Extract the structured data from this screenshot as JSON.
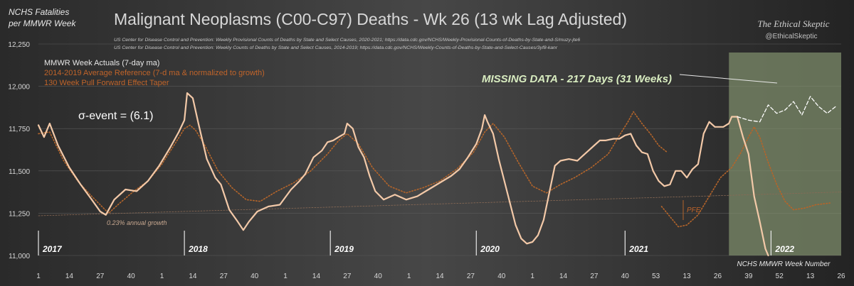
{
  "header": {
    "ylabel_line1": "NCHS Fatalities",
    "ylabel_line2": "per MMWR Week",
    "title": "Malignant Neoplasms (C00-C97) Deaths - Wk 26 (13 wk Lag Adjusted)",
    "source1": "US Center for Disease Control and Prevention: Weekly  Provisional Counts of Deaths by State and Select Causes, 2020-2021; https://data.cdc.gov/NCHS/Weekly-Provisional-Counts-of-Deaths-by-State-and-S/muzy-jte6",
    "source2": "US Center for Disease Control and Prevention: Weekly  Counts of Deaths by State and Select Causes, 2014-2019; https://data.cdc.gov/NCHS/Weekly-Counts-of-Deaths-by-State-and-Select-Causes/3yf8-kanr",
    "brand": "The Ethical Skeptic",
    "handle": "@EthicalSkeptic"
  },
  "colors": {
    "background": "#2b2b2b",
    "actuals": "#f3c9a8",
    "reference": "#b5652a",
    "pfe": "#8a6a55",
    "missing_band": "#7f8f6c",
    "missing_text": "#d8ecc0",
    "projection": "#ffffff"
  },
  "annotations": {
    "sigma": "σ-event  =  (6.1)",
    "missing": "MISSING DATA - 217 Days (31 Weeks)",
    "growth": "0.23% annual growth",
    "pfe": "PFE",
    "xaxis_title": "NCHS MMWR Week Number"
  },
  "chart_data": {
    "type": "line",
    "ylim": [
      11000,
      12250
    ],
    "yticks": [
      "11,000",
      "11,250",
      "11,500",
      "11,750",
      "12,000",
      "12,250"
    ],
    "x_tick_labels": [
      "1",
      "14",
      "27",
      "40",
      "1",
      "14",
      "27",
      "40",
      "1",
      "14",
      "27",
      "40",
      "1",
      "14",
      "27",
      "40",
      "1",
      "14",
      "27",
      "40",
      "53",
      "13",
      "26",
      "39",
      "52",
      "13",
      "26"
    ],
    "year_labels": [
      "2017",
      "2018",
      "2019",
      "2020",
      "2021",
      "2022"
    ],
    "legend": [
      "MMWR Week Actuals (7-day ma)",
      "2014-2019 Average Reference  (7-d ma & normalized to growth)",
      "130 Week Pull Forward Effect Taper"
    ],
    "x_range": [
      1,
      287
    ],
    "year_starts": [
      1,
      53,
      105,
      157,
      210,
      262
    ],
    "missing_band": [
      247,
      287
    ],
    "series": [
      {
        "name": "MMWR Week Actuals (7-day ma)",
        "points": [
          [
            1,
            11770
          ],
          [
            3,
            11700
          ],
          [
            5,
            11780
          ],
          [
            8,
            11650
          ],
          [
            12,
            11520
          ],
          [
            16,
            11420
          ],
          [
            20,
            11330
          ],
          [
            23,
            11260
          ],
          [
            25,
            11240
          ],
          [
            28,
            11330
          ],
          [
            32,
            11390
          ],
          [
            36,
            11380
          ],
          [
            40,
            11440
          ],
          [
            44,
            11530
          ],
          [
            48,
            11640
          ],
          [
            51,
            11730
          ],
          [
            53,
            11800
          ],
          [
            54,
            11960
          ],
          [
            56,
            11930
          ],
          [
            58,
            11780
          ],
          [
            61,
            11570
          ],
          [
            64,
            11460
          ],
          [
            66,
            11420
          ],
          [
            69,
            11270
          ],
          [
            72,
            11200
          ],
          [
            74,
            11150
          ],
          [
            76,
            11200
          ],
          [
            79,
            11260
          ],
          [
            83,
            11290
          ],
          [
            87,
            11300
          ],
          [
            91,
            11390
          ],
          [
            94,
            11440
          ],
          [
            96,
            11480
          ],
          [
            99,
            11580
          ],
          [
            102,
            11620
          ],
          [
            104,
            11670
          ],
          [
            106,
            11680
          ],
          [
            108,
            11700
          ],
          [
            110,
            11720
          ],
          [
            111,
            11780
          ],
          [
            113,
            11750
          ],
          [
            115,
            11640
          ],
          [
            117,
            11580
          ],
          [
            119,
            11470
          ],
          [
            121,
            11380
          ],
          [
            124,
            11330
          ],
          [
            128,
            11360
          ],
          [
            132,
            11330
          ],
          [
            136,
            11350
          ],
          [
            140,
            11390
          ],
          [
            144,
            11430
          ],
          [
            148,
            11470
          ],
          [
            151,
            11510
          ],
          [
            154,
            11580
          ],
          [
            157,
            11660
          ],
          [
            159,
            11750
          ],
          [
            160,
            11830
          ],
          [
            161,
            11790
          ],
          [
            163,
            11720
          ],
          [
            165,
            11570
          ],
          [
            167,
            11440
          ],
          [
            169,
            11310
          ],
          [
            171,
            11180
          ],
          [
            173,
            11100
          ],
          [
            175,
            11070
          ],
          [
            177,
            11080
          ],
          [
            179,
            11120
          ],
          [
            181,
            11210
          ],
          [
            183,
            11370
          ],
          [
            185,
            11530
          ],
          [
            187,
            11560
          ],
          [
            190,
            11570
          ],
          [
            193,
            11560
          ],
          [
            195,
            11590
          ],
          [
            197,
            11620
          ],
          [
            199,
            11650
          ],
          [
            201,
            11680
          ],
          [
            203,
            11680
          ],
          [
            206,
            11690
          ],
          [
            208,
            11690
          ],
          [
            210,
            11710
          ],
          [
            212,
            11720
          ],
          [
            214,
            11650
          ],
          [
            216,
            11610
          ],
          [
            218,
            11600
          ],
          [
            220,
            11500
          ],
          [
            222,
            11440
          ],
          [
            224,
            11410
          ],
          [
            226,
            11420
          ],
          [
            228,
            11500
          ],
          [
            230,
            11500
          ],
          [
            232,
            11460
          ],
          [
            234,
            11510
          ],
          [
            236,
            11540
          ],
          [
            238,
            11720
          ],
          [
            240,
            11790
          ],
          [
            242,
            11760
          ],
          [
            245,
            11760
          ],
          [
            247,
            11780
          ],
          [
            248,
            11820
          ],
          [
            250,
            11820
          ]
        ]
      },
      {
        "name": "MMWR Week Actuals (7-day ma) - continued",
        "points": [
          [
            250,
            11820
          ],
          [
            252,
            11700
          ],
          [
            254,
            11600
          ],
          [
            256,
            11350
          ],
          [
            258,
            11200
          ],
          [
            260,
            11040
          ],
          [
            261,
            11000
          ]
        ]
      },
      {
        "name": "2014-2019 Average Reference  (7-d ma & normalized to growth)",
        "points": [
          [
            1,
            11720
          ],
          [
            5,
            11730
          ],
          [
            10,
            11560
          ],
          [
            15,
            11440
          ],
          [
            20,
            11350
          ],
          [
            26,
            11250
          ],
          [
            30,
            11310
          ],
          [
            35,
            11380
          ],
          [
            40,
            11440
          ],
          [
            45,
            11540
          ],
          [
            50,
            11670
          ],
          [
            53,
            11750
          ],
          [
            55,
            11770
          ],
          [
            57,
            11740
          ],
          [
            60,
            11660
          ],
          [
            65,
            11500
          ],
          [
            70,
            11400
          ],
          [
            75,
            11330
          ],
          [
            80,
            11320
          ],
          [
            86,
            11380
          ],
          [
            92,
            11430
          ],
          [
            98,
            11500
          ],
          [
            104,
            11600
          ],
          [
            108,
            11680
          ],
          [
            111,
            11720
          ],
          [
            115,
            11660
          ],
          [
            120,
            11520
          ],
          [
            126,
            11410
          ],
          [
            132,
            11370
          ],
          [
            138,
            11400
          ],
          [
            144,
            11440
          ],
          [
            150,
            11510
          ],
          [
            156,
            11610
          ],
          [
            160,
            11730
          ],
          [
            163,
            11780
          ],
          [
            167,
            11700
          ],
          [
            172,
            11550
          ],
          [
            177,
            11410
          ],
          [
            182,
            11370
          ],
          [
            187,
            11420
          ],
          [
            192,
            11460
          ],
          [
            198,
            11520
          ],
          [
            204,
            11600
          ],
          [
            208,
            11710
          ],
          [
            211,
            11790
          ],
          [
            213,
            11850
          ],
          [
            216,
            11780
          ],
          [
            219,
            11720
          ],
          [
            222,
            11650
          ],
          [
            225,
            11610
          ]
        ]
      },
      {
        "name": "130 Week Pull Forward Effect Taper",
        "points": [
          [
            223,
            11290
          ],
          [
            226,
            11230
          ],
          [
            229,
            11170
          ],
          [
            232,
            11180
          ],
          [
            236,
            11240
          ],
          [
            240,
            11350
          ],
          [
            244,
            11460
          ],
          [
            248,
            11520
          ],
          [
            251,
            11600
          ],
          [
            254,
            11700
          ],
          [
            256,
            11760
          ],
          [
            258,
            11700
          ],
          [
            261,
            11550
          ],
          [
            264,
            11420
          ],
          [
            267,
            11320
          ],
          [
            270,
            11270
          ],
          [
            274,
            11280
          ],
          [
            278,
            11300
          ],
          [
            283,
            11310
          ]
        ]
      },
      {
        "name": "projection",
        "points": [
          [
            250,
            11820
          ],
          [
            254,
            11800
          ],
          [
            258,
            11790
          ],
          [
            261,
            11890
          ],
          [
            264,
            11840
          ],
          [
            267,
            11860
          ],
          [
            270,
            11910
          ],
          [
            273,
            11830
          ],
          [
            276,
            11940
          ],
          [
            279,
            11880
          ],
          [
            282,
            11840
          ],
          [
            285,
            11880
          ]
        ]
      },
      {
        "name": "0.23% annual growth",
        "points": [
          [
            1,
            11235
          ],
          [
            287,
            11375
          ]
        ]
      }
    ]
  }
}
